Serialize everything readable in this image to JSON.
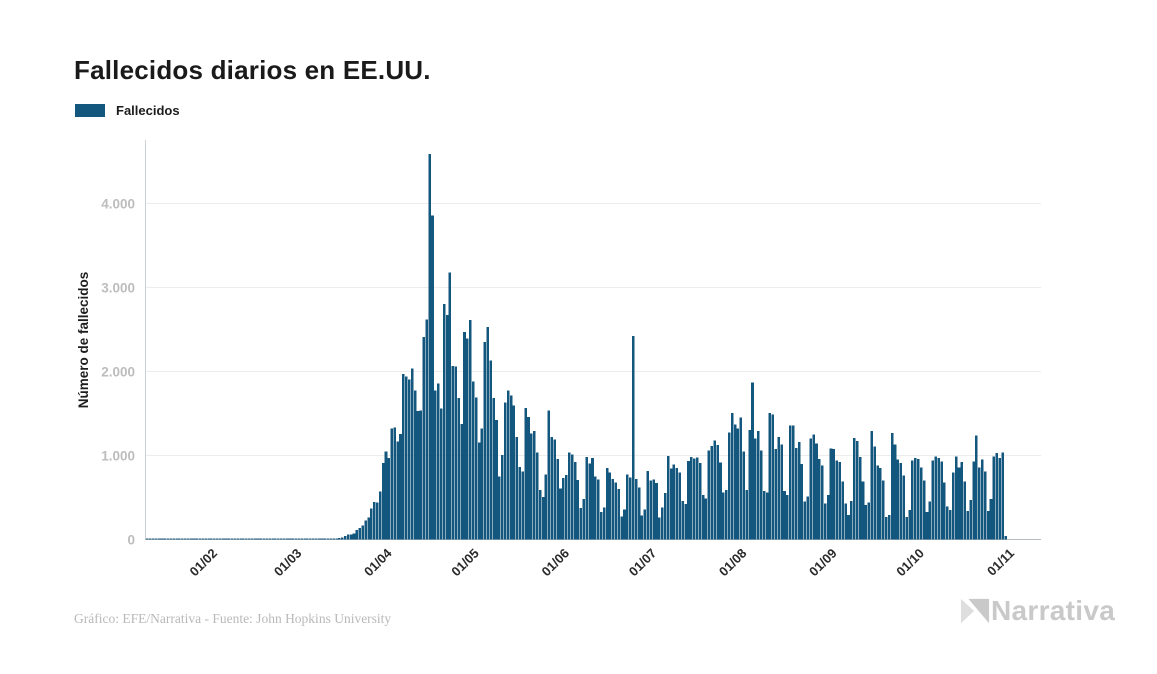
{
  "legend": {
    "label": "Fallecidos"
  },
  "footer": {
    "credit": "Gráfico: EFE/Narrativa - Fuente: John Hopkins University",
    "brand": "Narrativa"
  },
  "colors": {
    "bar": "#14577e",
    "grid": "#ececec",
    "axis": "#ccd1d5",
    "baseline": "#b7bdc1",
    "ytick_text": "#bdbdbd",
    "xtick_text": "#2a2a2a",
    "ylabel_text": "#1e1e1e",
    "title_text": "#1a1a1a"
  },
  "chart_data": {
    "type": "bar",
    "title": "Fallecidos diarios en EE.UU.",
    "ylabel": "Número de fallecidos",
    "grid": true,
    "legend_position": "top-left",
    "ylim": [
      0,
      4750
    ],
    "y_ticks": [
      {
        "label": "0",
        "value": 0
      },
      {
        "label": "1.000",
        "value": 1000
      },
      {
        "label": "2.000",
        "value": 2000
      },
      {
        "label": "3.000",
        "value": 3000
      },
      {
        "label": "4.000",
        "value": 4000
      }
    ],
    "x_ticks": [
      {
        "label": "01/02",
        "day": 22
      },
      {
        "label": "01/03",
        "day": 51
      },
      {
        "label": "01/04",
        "day": 82
      },
      {
        "label": "01/05",
        "day": 112
      },
      {
        "label": "01/06",
        "day": 143
      },
      {
        "label": "01/07",
        "day": 173
      },
      {
        "label": "01/08",
        "day": 204
      },
      {
        "label": "01/09",
        "day": 235
      },
      {
        "label": "01/10",
        "day": 265
      },
      {
        "label": "01/11",
        "day": 296
      }
    ],
    "start_date": "10/01/2020",
    "frequency": "daily",
    "series": [
      {
        "name": "Fallecidos",
        "values": [
          0,
          0,
          0,
          0,
          0,
          0,
          0,
          0,
          0,
          0,
          0,
          0,
          0,
          0,
          0,
          0,
          0,
          0,
          0,
          0,
          0,
          0,
          0,
          0,
          0,
          0,
          0,
          0,
          0,
          0,
          0,
          0,
          0,
          0,
          0,
          0,
          0,
          0,
          0,
          0,
          0,
          0,
          0,
          0,
          0,
          0,
          0,
          0,
          0,
          0,
          1,
          1,
          2,
          4,
          3,
          2,
          3,
          4,
          4,
          5,
          6,
          8,
          6,
          9,
          11,
          14,
          19,
          26,
          41,
          57,
          62,
          72,
          111,
          135,
          164,
          225,
          263,
          372,
          445,
          441,
          573,
          912,
          1049,
          968,
          1321,
          1331,
          1165,
          1255,
          1970,
          1940,
          1906,
          2035,
          1772,
          1528,
          1535,
          2408,
          2621,
          4591,
          3857,
          1772,
          1856,
          1561,
          2804,
          2675,
          3179,
          2065,
          2057,
          1687,
          1373,
          2470,
          2390,
          2611,
          1883,
          1691,
          1154,
          1324,
          2350,
          2528,
          2129,
          1687,
          1422,
          750,
          1008,
          1630,
          1772,
          1715,
          1595,
          1218,
          865,
          808,
          1568,
          1461,
          1263,
          1293,
          1035,
          592,
          505,
          774,
          1535,
          1223,
          1193,
          960,
          605,
          730,
          768,
          1036,
          1010,
          921,
          708,
          373,
          480,
          983,
          905,
          972,
          752,
          714,
          330,
          379,
          851,
          800,
          722,
          678,
          601,
          271,
          355,
          776,
          739,
          2425,
          722,
          617,
          287,
          356,
          818,
          700,
          714,
          670,
          262,
          382,
          556,
          994,
          846,
          894,
          852,
          797,
          460,
          421,
          935,
          982,
          963,
          977,
          908,
          527,
          489,
          1059,
          1113,
          1181,
          1125,
          916,
          560,
          591,
          1271,
          1505,
          1372,
          1324,
          1452,
          1050,
          590,
          1302,
          1869,
          1204,
          1290,
          1060,
          580,
          560,
          1504,
          1486,
          1076,
          1222,
          1130,
          580,
          530,
          1358,
          1356,
          1090,
          1160,
          900,
          450,
          510,
          1205,
          1250,
          1140,
          960,
          880,
          430,
          530,
          1085,
          1077,
          940,
          920,
          690,
          430,
          290,
          460,
          1208,
          1170,
          980,
          690,
          410,
          440,
          1290,
          1110,
          880,
          850,
          700,
          270,
          290,
          1270,
          1130,
          950,
          910,
          760,
          270,
          350,
          940,
          970,
          960,
          860,
          700,
          330,
          450,
          940,
          990,
          970,
          930,
          680,
          390,
          350,
          800,
          990,
          860,
          920,
          690,
          340,
          470,
          930,
          1240,
          860,
          950,
          810,
          340,
          480,
          990,
          1030,
          970,
          1035,
          40
        ]
      }
    ]
  }
}
